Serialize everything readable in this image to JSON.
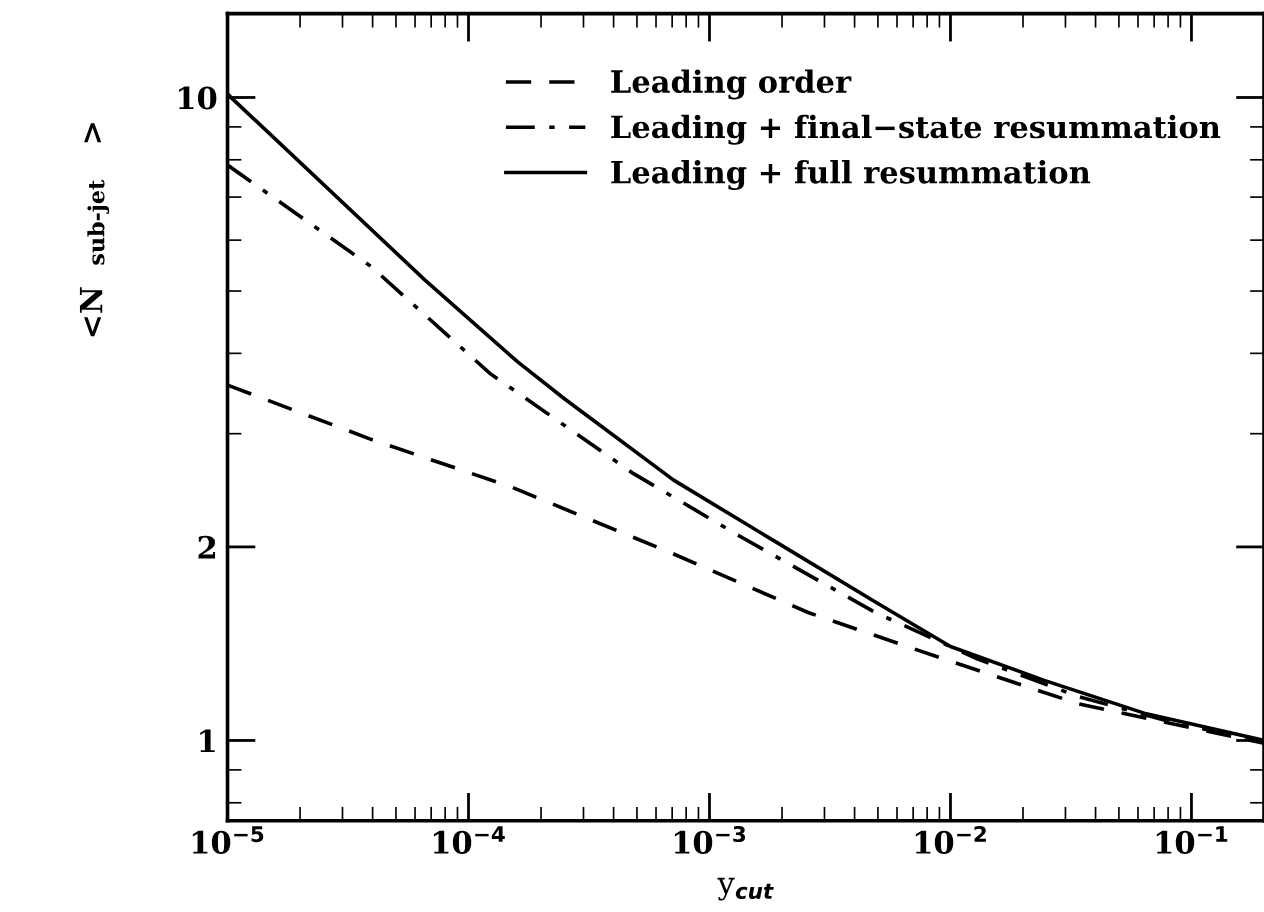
{
  "chart_data": {
    "type": "line",
    "xlabel": "y$_{cut}$",
    "ylabel": "<N$_{sub-jet}$>",
    "log": "xy",
    "xlim": [
      1e-05,
      0.2
    ],
    "ylim": [
      0.75,
      13.5
    ],
    "xticks": [
      {
        "value": 1e-05,
        "label": "10$^{−5}$"
      },
      {
        "value": 0.0001,
        "label": "10$^{−4}$"
      },
      {
        "value": 0.001,
        "label": "10$^{−3}$"
      },
      {
        "value": 0.01,
        "label": "10$^{−2}$"
      },
      {
        "value": 0.1,
        "label": "10$^{−1}$"
      }
    ],
    "yticks": [
      1,
      2,
      10
    ],
    "legend": "top right",
    "grid": false,
    "series": [
      {
        "name": "Leading order",
        "color": "#000000",
        "line_style": "dashed",
        "x": [
          1e-05,
          3.94e-05,
          0.00015,
          0.00071,
          0.00258,
          0.0093,
          0.034,
          0.108,
          0.2
        ],
        "values": [
          3.57,
          2.94,
          2.48,
          1.95,
          1.58,
          1.34,
          1.14,
          1.04,
          0.99
        ]
      },
      {
        "name": "Leading + final−state resummation",
        "color": "#000000",
        "line_style": "dashdot",
        "x": [
          1e-05,
          3.94e-05,
          0.000123,
          0.000484,
          0.00136,
          0.0049,
          0.0129,
          0.034,
          0.089,
          0.2
        ],
        "values": [
          7.85,
          5.46,
          3.72,
          2.6,
          2.07,
          1.58,
          1.34,
          1.17,
          1.06,
          1.0
        ]
      },
      {
        "name": "Leading + full resummation",
        "color": "#000000",
        "line_style": "solid",
        "x": [
          1e-05,
          6.6e-05,
          0.00016,
          0.00025,
          0.00071,
          0.00187,
          0.0049,
          0.01,
          0.0245,
          0.065,
          0.2
        ],
        "values": [
          10.12,
          5.2,
          3.88,
          3.4,
          2.54,
          2.04,
          1.64,
          1.4,
          1.24,
          1.1,
          1.0
        ]
      }
    ]
  }
}
